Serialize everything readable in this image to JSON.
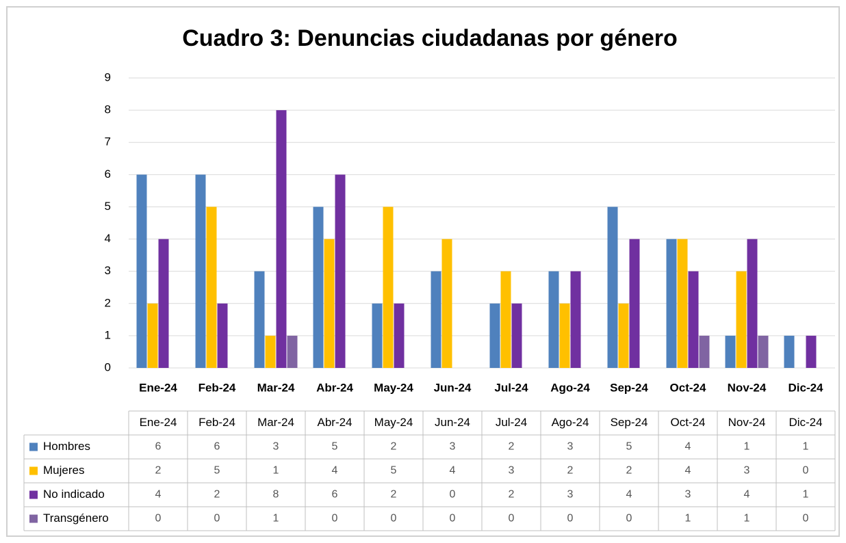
{
  "chart_data": {
    "type": "bar",
    "title": "Cuadro 3: Denuncias ciudadanas por género",
    "categories": [
      "Ene-24",
      "Feb-24",
      "Mar-24",
      "Abr-24",
      "May-24",
      "Jun-24",
      "Jul-24",
      "Ago-24",
      "Sep-24",
      "Oct-24",
      "Nov-24",
      "Dic-24"
    ],
    "series": [
      {
        "name": "Hombres",
        "color": "#4f81bd",
        "values": [
          6,
          6,
          3,
          5,
          2,
          3,
          2,
          3,
          5,
          4,
          1,
          1
        ]
      },
      {
        "name": "Mujeres",
        "color": "#ffc000",
        "values": [
          2,
          5,
          1,
          4,
          5,
          4,
          3,
          2,
          2,
          4,
          3,
          0
        ]
      },
      {
        "name": "No indicado",
        "color": "#7030a0",
        "values": [
          4,
          2,
          8,
          6,
          2,
          0,
          2,
          3,
          4,
          3,
          4,
          1
        ]
      },
      {
        "name": "Transgénero",
        "color": "#8064a2",
        "values": [
          0,
          0,
          1,
          0,
          0,
          0,
          0,
          0,
          0,
          1,
          1,
          0
        ]
      }
    ],
    "ylim": [
      0,
      9
    ],
    "yticks": [
      0,
      1,
      2,
      3,
      4,
      5,
      6,
      7,
      8,
      9
    ],
    "grid": true
  }
}
